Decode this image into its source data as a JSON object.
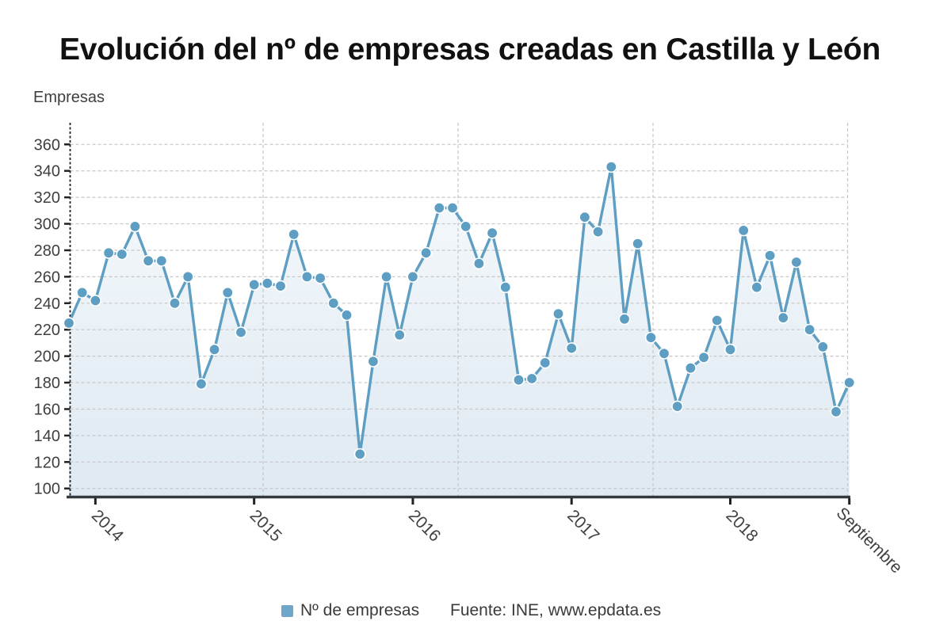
{
  "title": "Evolución del nº de empresas creadas en Castilla y León",
  "y_axis_title": "Empresas",
  "legend": {
    "series_label": "Nº de empresas",
    "source_label": "Fuente: INE, www.epdata.es"
  },
  "colors": {
    "line": "#5f9ec3",
    "dot": "#5f9ec3",
    "dot_stroke": "#ffffff",
    "area_top": "#f5f9fb",
    "area_bottom": "#dee9f2",
    "grid": "#c6c6c6",
    "axis": "#35393f",
    "tick": "#222222",
    "text": "#3f3f3f",
    "title_text": "#111111",
    "legend_swatch": "#6ea7c9"
  },
  "chart_data": {
    "type": "line",
    "title": "Evolución del nº de empresas creadas en Castilla y León",
    "ylabel": "Empresas",
    "grid": true,
    "legend_position": "bottom",
    "ylim": [
      100,
      360
    ],
    "y_tick_values": [
      100,
      120,
      140,
      160,
      180,
      200,
      220,
      240,
      260,
      280,
      300,
      320,
      340,
      360
    ],
    "x_tick_labels": [
      "2014",
      "2015",
      "2016",
      "2017",
      "2018",
      "Septiembre"
    ],
    "series": [
      {
        "name": "Nº de empresas",
        "values": [
          225,
          248,
          242,
          278,
          277,
          298,
          272,
          272,
          240,
          260,
          179,
          205,
          248,
          218,
          254,
          255,
          253,
          292,
          260,
          259,
          240,
          231,
          126,
          196,
          260,
          216,
          260,
          278,
          312,
          312,
          298,
          270,
          293,
          252,
          182,
          183,
          195,
          232,
          206,
          305,
          294,
          343,
          228,
          285,
          214,
          202,
          162,
          191,
          199,
          227,
          205,
          295,
          252,
          276,
          229,
          271,
          220,
          207,
          158,
          180
        ]
      }
    ]
  }
}
